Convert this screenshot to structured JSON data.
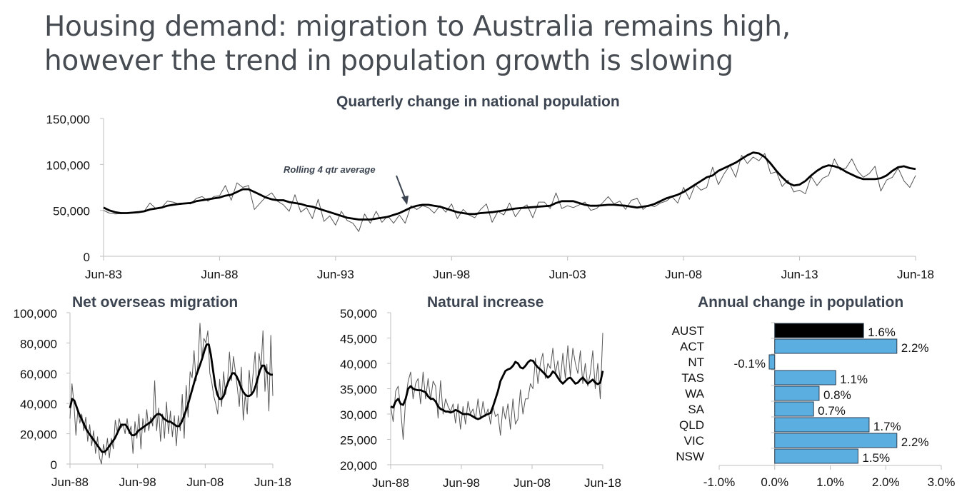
{
  "headline": {
    "line1": "Housing demand: migration to Australia remains high,",
    "line2": "however the trend in population growth is slowing"
  },
  "colors": {
    "title": "#3b4450",
    "raw_line": "#555555",
    "trend_line": "#000000",
    "axis": "#bfbfbf",
    "bar_state": "#5aaee0",
    "bar_aust": "#000000",
    "bar_border": "#2c3e50"
  },
  "chart_data": [
    {
      "id": "quarterly",
      "type": "line",
      "title": "Quarterly change in national population",
      "annotation": "Rolling 4 qtr average",
      "x_start": "Jun-83",
      "frequency": "quarterly",
      "xticks": [
        "Jun-83",
        "Jun-88",
        "Jun-93",
        "Jun-98",
        "Jun-03",
        "Jun-08",
        "Jun-13",
        "Jun-18"
      ],
      "yticks": [
        "0",
        "50,000",
        "100,000",
        "150,000"
      ],
      "ytick_values": [
        0,
        50000,
        100000,
        150000
      ],
      "ylim": [
        0,
        150000
      ],
      "series": [
        {
          "name": "Quarterly change",
          "values": [
            50000,
            47000,
            46000,
            46500,
            47000,
            48000,
            48500,
            49000,
            58000,
            52000,
            53000,
            60000,
            59000,
            57000,
            58000,
            57000,
            63000,
            65000,
            60000,
            65000,
            66000,
            77000,
            61000,
            80000,
            75000,
            77000,
            51000,
            58000,
            65000,
            69000,
            60000,
            56000,
            49000,
            67000,
            48000,
            53000,
            41000,
            62000,
            38000,
            44000,
            34000,
            49000,
            39000,
            36000,
            27000,
            46000,
            36000,
            49000,
            37000,
            44000,
            36000,
            45000,
            36000,
            55000,
            51000,
            55000,
            53000,
            47000,
            55000,
            48000,
            57000,
            41000,
            51000,
            45000,
            42000,
            51000,
            57000,
            37000,
            49000,
            45000,
            58000,
            43000,
            52000,
            56000,
            42000,
            59000,
            59000,
            52000,
            69000,
            52000,
            55000,
            53000,
            56000,
            59000,
            50000,
            52000,
            58000,
            65000,
            57000,
            60000,
            51000,
            61000,
            63000,
            51000,
            56000,
            54000,
            58000,
            60000,
            65000,
            58000,
            75000,
            62000,
            78000,
            72000,
            75000,
            97000,
            78000,
            90000,
            99000,
            86000,
            110000,
            101000,
            108000,
            104000,
            112000,
            90000,
            92000,
            76000,
            83000,
            70000,
            72000,
            68000,
            87000,
            77000,
            85000,
            88000,
            106000,
            94000,
            96000,
            106000,
            93000,
            86000,
            90000,
            98000,
            71000,
            83000,
            86000,
            96000,
            82000,
            75000,
            88000
          ]
        },
        {
          "name": "Rolling 4 qtr average",
          "values": [
            53000,
            50000,
            48000,
            47000,
            47000,
            47500,
            48000,
            49000,
            51000,
            52000,
            53000,
            55000,
            56000,
            57000,
            57500,
            58000,
            60000,
            61000,
            62000,
            63000,
            64000,
            66000,
            67000,
            70000,
            73000,
            73000,
            70000,
            67000,
            64000,
            62000,
            61000,
            61000,
            59000,
            58000,
            57000,
            55000,
            54000,
            52000,
            50000,
            48000,
            46000,
            44000,
            42000,
            41000,
            40000,
            40000,
            40000,
            41000,
            42000,
            43000,
            45000,
            47000,
            50000,
            53000,
            55000,
            56000,
            56000,
            55000,
            54000,
            52000,
            50000,
            48000,
            47000,
            46000,
            46000,
            47000,
            47500,
            48000,
            49000,
            50000,
            51000,
            52000,
            52500,
            53000,
            53500,
            54000,
            54500,
            55000,
            58000,
            60000,
            60000,
            60000,
            58000,
            56000,
            55000,
            55000,
            55500,
            56000,
            56000,
            55500,
            55000,
            54000,
            53000,
            54000,
            55000,
            57000,
            60000,
            63000,
            65000,
            67000,
            70000,
            74000,
            78000,
            82000,
            86000,
            88000,
            93000,
            96000,
            99000,
            102000,
            106000,
            110000,
            113000,
            112000,
            108000,
            101000,
            93000,
            86000,
            80000,
            77000,
            78000,
            82000,
            88000,
            93000,
            97000,
            99000,
            98000,
            96000,
            92000,
            89000,
            86000,
            84000,
            84000,
            84000,
            85000,
            88000,
            93000,
            97000,
            98000,
            96000,
            95000
          ]
        }
      ]
    },
    {
      "id": "nom",
      "type": "line",
      "title": "Net overseas migration",
      "x_start": "Jun-88",
      "frequency": "quarterly",
      "xticks": [
        "Jun-88",
        "Jun-98",
        "Jun-08",
        "Jun-18"
      ],
      "yticks": [
        "0",
        "20,000",
        "40,000",
        "60,000",
        "80,000",
        "100,000"
      ],
      "ytick_values": [
        0,
        20000,
        40000,
        60000,
        80000,
        100000
      ],
      "ylim": [
        0,
        100000
      ],
      "series": [
        {
          "name": "Quarterly",
          "values": [
            30000,
            53000,
            40000,
            19000,
            36000,
            27000,
            33000,
            22000,
            31000,
            15000,
            26000,
            12000,
            22000,
            7000,
            18000,
            4000,
            0,
            13000,
            6000,
            17000,
            4000,
            17000,
            10000,
            29000,
            21000,
            30000,
            24000,
            26000,
            20000,
            30000,
            20000,
            25000,
            7000,
            28000,
            17000,
            33000,
            10000,
            30000,
            21000,
            36000,
            22000,
            31000,
            25000,
            55000,
            22000,
            37000,
            15000,
            33000,
            17000,
            41000,
            20000,
            35000,
            18000,
            32000,
            12000,
            32000,
            22000,
            46000,
            17000,
            52000,
            31000,
            61000,
            57000,
            75000,
            55000,
            66000,
            93000,
            69000,
            83000,
            80000,
            88000,
            60000,
            54000,
            45000,
            40000,
            33000,
            56000,
            38000,
            61000,
            46000,
            54000,
            74000,
            55000,
            71000,
            61000,
            50000,
            38000,
            64000,
            29000,
            46000,
            33000,
            62000,
            45000,
            60000,
            74000,
            44000,
            73000,
            63000,
            88000,
            48000,
            66000,
            35000,
            85000,
            45000
          ]
        },
        {
          "name": "Rolling 4 qtr average",
          "values": [
            37000,
            43000,
            42000,
            38000,
            34000,
            31000,
            28000,
            25000,
            22000,
            20000,
            18000,
            16000,
            14000,
            12000,
            10000,
            8000,
            8000,
            9000,
            11000,
            13000,
            15000,
            17000,
            20000,
            23000,
            26000,
            26000,
            26000,
            24000,
            21000,
            19000,
            19000,
            20000,
            22000,
            23000,
            24000,
            25000,
            26000,
            27000,
            28000,
            30000,
            32000,
            33000,
            33000,
            32000,
            30000,
            29000,
            28000,
            28000,
            27000,
            26000,
            25000,
            25000,
            27000,
            30000,
            34000,
            38000,
            43000,
            48000,
            53000,
            58000,
            62000,
            66000,
            70000,
            75000,
            79000,
            79000,
            72000,
            62000,
            52000,
            46000,
            43000,
            43000,
            45000,
            50000,
            54000,
            57000,
            60000,
            60000,
            58000,
            55000,
            51000,
            48000,
            46000,
            45000,
            45000,
            46000,
            48000,
            52000,
            57000,
            62000,
            65000,
            65000,
            61000,
            60000,
            59000,
            59000
          ]
        }
      ]
    },
    {
      "id": "natural",
      "type": "line",
      "title": "Natural increase",
      "x_start": "Jun-88",
      "frequency": "quarterly",
      "xticks": [
        "Jun-88",
        "Jun-98",
        "Jun-08",
        "Jun-18"
      ],
      "yticks": [
        "20,000",
        "25,000",
        "30,000",
        "35,000",
        "40,000",
        "45,000",
        "50,000"
      ],
      "ytick_values": [
        20000,
        25000,
        30000,
        35000,
        40000,
        45000,
        50000
      ],
      "ylim": [
        20000,
        50000
      ],
      "series": [
        {
          "name": "Quarterly",
          "values": [
            31500,
            28500,
            34500,
            35500,
            31000,
            25000,
            33000,
            36500,
            38300,
            33000,
            36000,
            37000,
            32000,
            38300,
            33000,
            37000,
            32800,
            36500,
            35500,
            29200,
            36600,
            30000,
            33000,
            31500,
            30500,
            32000,
            28200,
            32000,
            27000,
            31500,
            28000,
            32500,
            30000,
            31000,
            29000,
            33000,
            29000,
            32500,
            29500,
            31000,
            28000,
            31500,
            29500,
            30000,
            25800,
            31500,
            29000,
            32000,
            27000,
            33000,
            28000,
            29000,
            34800,
            30000,
            33000,
            33000,
            36000,
            35000,
            41000,
            36000,
            40000,
            42000,
            37000,
            40000,
            39000,
            43000,
            38000,
            40500,
            36500,
            42000,
            37000,
            43500,
            37500,
            43000,
            40000,
            38000,
            42500,
            36000,
            40000,
            35500,
            38000,
            42500,
            35000,
            40000,
            33000,
            46000
          ]
        },
        {
          "name": "Rolling 4 qtr average",
          "values": [
            31500,
            31300,
            32500,
            33000,
            32000,
            31800,
            33000,
            35000,
            35500,
            35000,
            34800,
            34700,
            34700,
            34500,
            34300,
            33500,
            33000,
            33000,
            32500,
            31500,
            31000,
            30800,
            30500,
            30500,
            30300,
            30500,
            30800,
            30600,
            30300,
            30000,
            30000,
            30000,
            29800,
            29500,
            29200,
            29000,
            29200,
            29500,
            29800,
            30000,
            30200,
            31500,
            33000,
            34500,
            36500,
            37500,
            38500,
            38800,
            39000,
            39500,
            40300,
            40000,
            39200,
            39000,
            39500,
            40200,
            40600,
            40500,
            39800,
            39200,
            38800,
            38300,
            37800,
            37200,
            37600,
            38400,
            38000,
            37200,
            36500,
            36000,
            36500,
            37000,
            37200,
            36600,
            36000,
            36200,
            36800,
            37200,
            36600,
            36000,
            36400,
            36800,
            36200,
            35900,
            36200,
            38500
          ]
        }
      ]
    },
    {
      "id": "annual",
      "type": "bar",
      "orientation": "horizontal",
      "title": "Annual change in population",
      "categories": [
        "AUST",
        "ACT",
        "NT",
        "TAS",
        "WA",
        "SA",
        "QLD",
        "VIC",
        "NSW"
      ],
      "values": [
        1.6,
        2.2,
        -0.1,
        1.1,
        0.8,
        0.7,
        1.7,
        2.2,
        1.5
      ],
      "data_labels": [
        "1.6%",
        "2.2%",
        "-0.1%",
        "1.1%",
        "0.8%",
        "0.7%",
        "1.7%",
        "2.2%",
        "1.5%"
      ],
      "xticks": [
        "-1.0%",
        "0.0%",
        "1.0%",
        "2.0%",
        "3.0%"
      ],
      "xtick_values": [
        -1,
        0,
        1,
        2,
        3
      ],
      "xlim": [
        -1,
        3
      ],
      "highlight": "AUST"
    }
  ]
}
